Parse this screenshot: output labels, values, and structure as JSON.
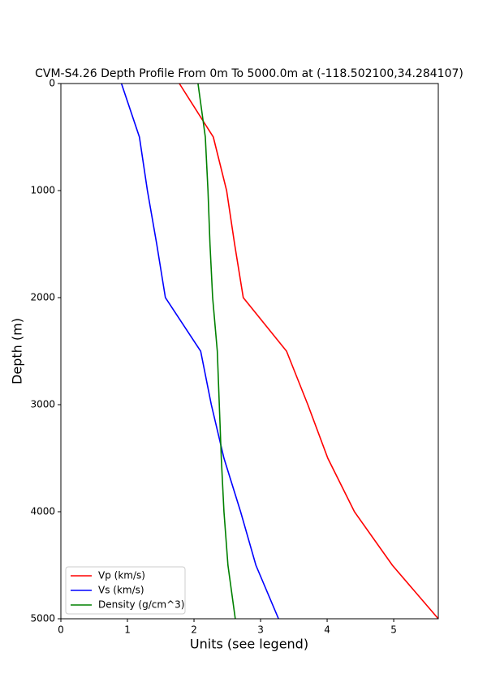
{
  "chart_data": {
    "type": "line",
    "title": "CVM-S4.26 Depth Profile From 0m To 5000.0m at (-118.502100,34.284107)",
    "xlabel": "Units (see legend)",
    "ylabel": "Depth (m)",
    "y": [
      0,
      500,
      1000,
      1500,
      2000,
      2500,
      3000,
      3500,
      4000,
      4500,
      5000
    ],
    "series": [
      {
        "name": "Vp (km/s)",
        "color": "#ff0000",
        "values": [
          1.78,
          2.29,
          2.49,
          2.61,
          2.74,
          3.39,
          3.71,
          4.01,
          4.41,
          4.98,
          5.67
        ]
      },
      {
        "name": "Vs (km/s)",
        "color": "#0000ff",
        "values": [
          0.91,
          1.18,
          1.3,
          1.44,
          1.57,
          2.1,
          2.26,
          2.45,
          2.7,
          2.93,
          3.27
        ]
      },
      {
        "name": "Density (g/cm^3)",
        "color": "#008000",
        "values": [
          2.06,
          2.17,
          2.21,
          2.24,
          2.28,
          2.35,
          2.38,
          2.41,
          2.45,
          2.51,
          2.62
        ]
      }
    ],
    "xlim": [
      0,
      5.67
    ],
    "xticks": [
      0,
      1,
      2,
      3,
      4,
      5
    ],
    "ylim": [
      0,
      5000
    ],
    "yticks": [
      0,
      1000,
      2000,
      3000,
      4000,
      5000
    ],
    "y_inverted": true,
    "legend": "lower left"
  }
}
